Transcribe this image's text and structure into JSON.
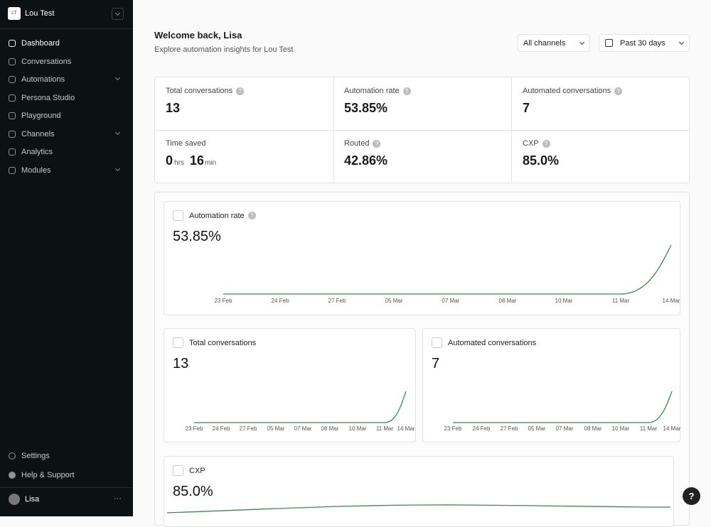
{
  "sidebar": {
    "badge": "LT",
    "workspace": "Lou Test",
    "nav": [
      "Dashboard",
      "Conversations",
      "Automations",
      "Persona Studio",
      "Playground",
      "Channels",
      "Analytics",
      "Modules"
    ],
    "footer": [
      "Settings",
      "Help & Support"
    ],
    "user": "Lisa"
  },
  "header": {
    "title": "Welcome back, Lisa",
    "subtitle": "Explore automation insights for Lou Test",
    "channel_filter": "All channels",
    "date_filter": "Past 30 days"
  },
  "stats": [
    {
      "label": "Total conversations",
      "value": "13"
    },
    {
      "label": "Automation rate",
      "value": "53.85%"
    },
    {
      "label": "Automated conversations",
      "value": "7"
    },
    {
      "label": "Time saved",
      "hours": "0",
      "hours_unit": "hrs",
      "minutes": "16",
      "minutes_unit": "min"
    },
    {
      "label": "Routed",
      "value": "42.86%"
    },
    {
      "label": "CXP",
      "value": "85.0%"
    }
  ],
  "charts": [
    {
      "type": "line",
      "title": "Automation rate",
      "value": "53.85%",
      "categories": [
        "23 Feb",
        "24 Feb",
        "27 Feb",
        "05 Mar",
        "07 Mar",
        "08 Mar",
        "10 Mar",
        "11 Mar",
        "14 Mar"
      ],
      "values": [
        0,
        0,
        0,
        0,
        0,
        0,
        0,
        0,
        53.85
      ]
    },
    {
      "type": "line",
      "title": "Total conversations",
      "value": "13",
      "categories": [
        "23 Feb",
        "24 Feb",
        "27 Feb",
        "05 Mar",
        "07 Mar",
        "08 Mar",
        "10 Mar",
        "11 Mar",
        "14 Mar"
      ],
      "values": [
        0,
        0,
        0,
        0,
        0,
        0,
        0,
        0,
        13
      ]
    },
    {
      "type": "line",
      "title": "Automated conversations",
      "value": "7",
      "categories": [
        "23 Feb",
        "24 Feb",
        "27 Feb",
        "05 Mar",
        "07 Mar",
        "08 Mar",
        "10 Mar",
        "11 Mar",
        "14 Mar"
      ],
      "values": [
        0,
        0,
        0,
        0,
        0,
        0,
        0,
        0,
        7
      ]
    },
    {
      "type": "line",
      "title": "CXP",
      "value": "85.0%"
    }
  ]
}
